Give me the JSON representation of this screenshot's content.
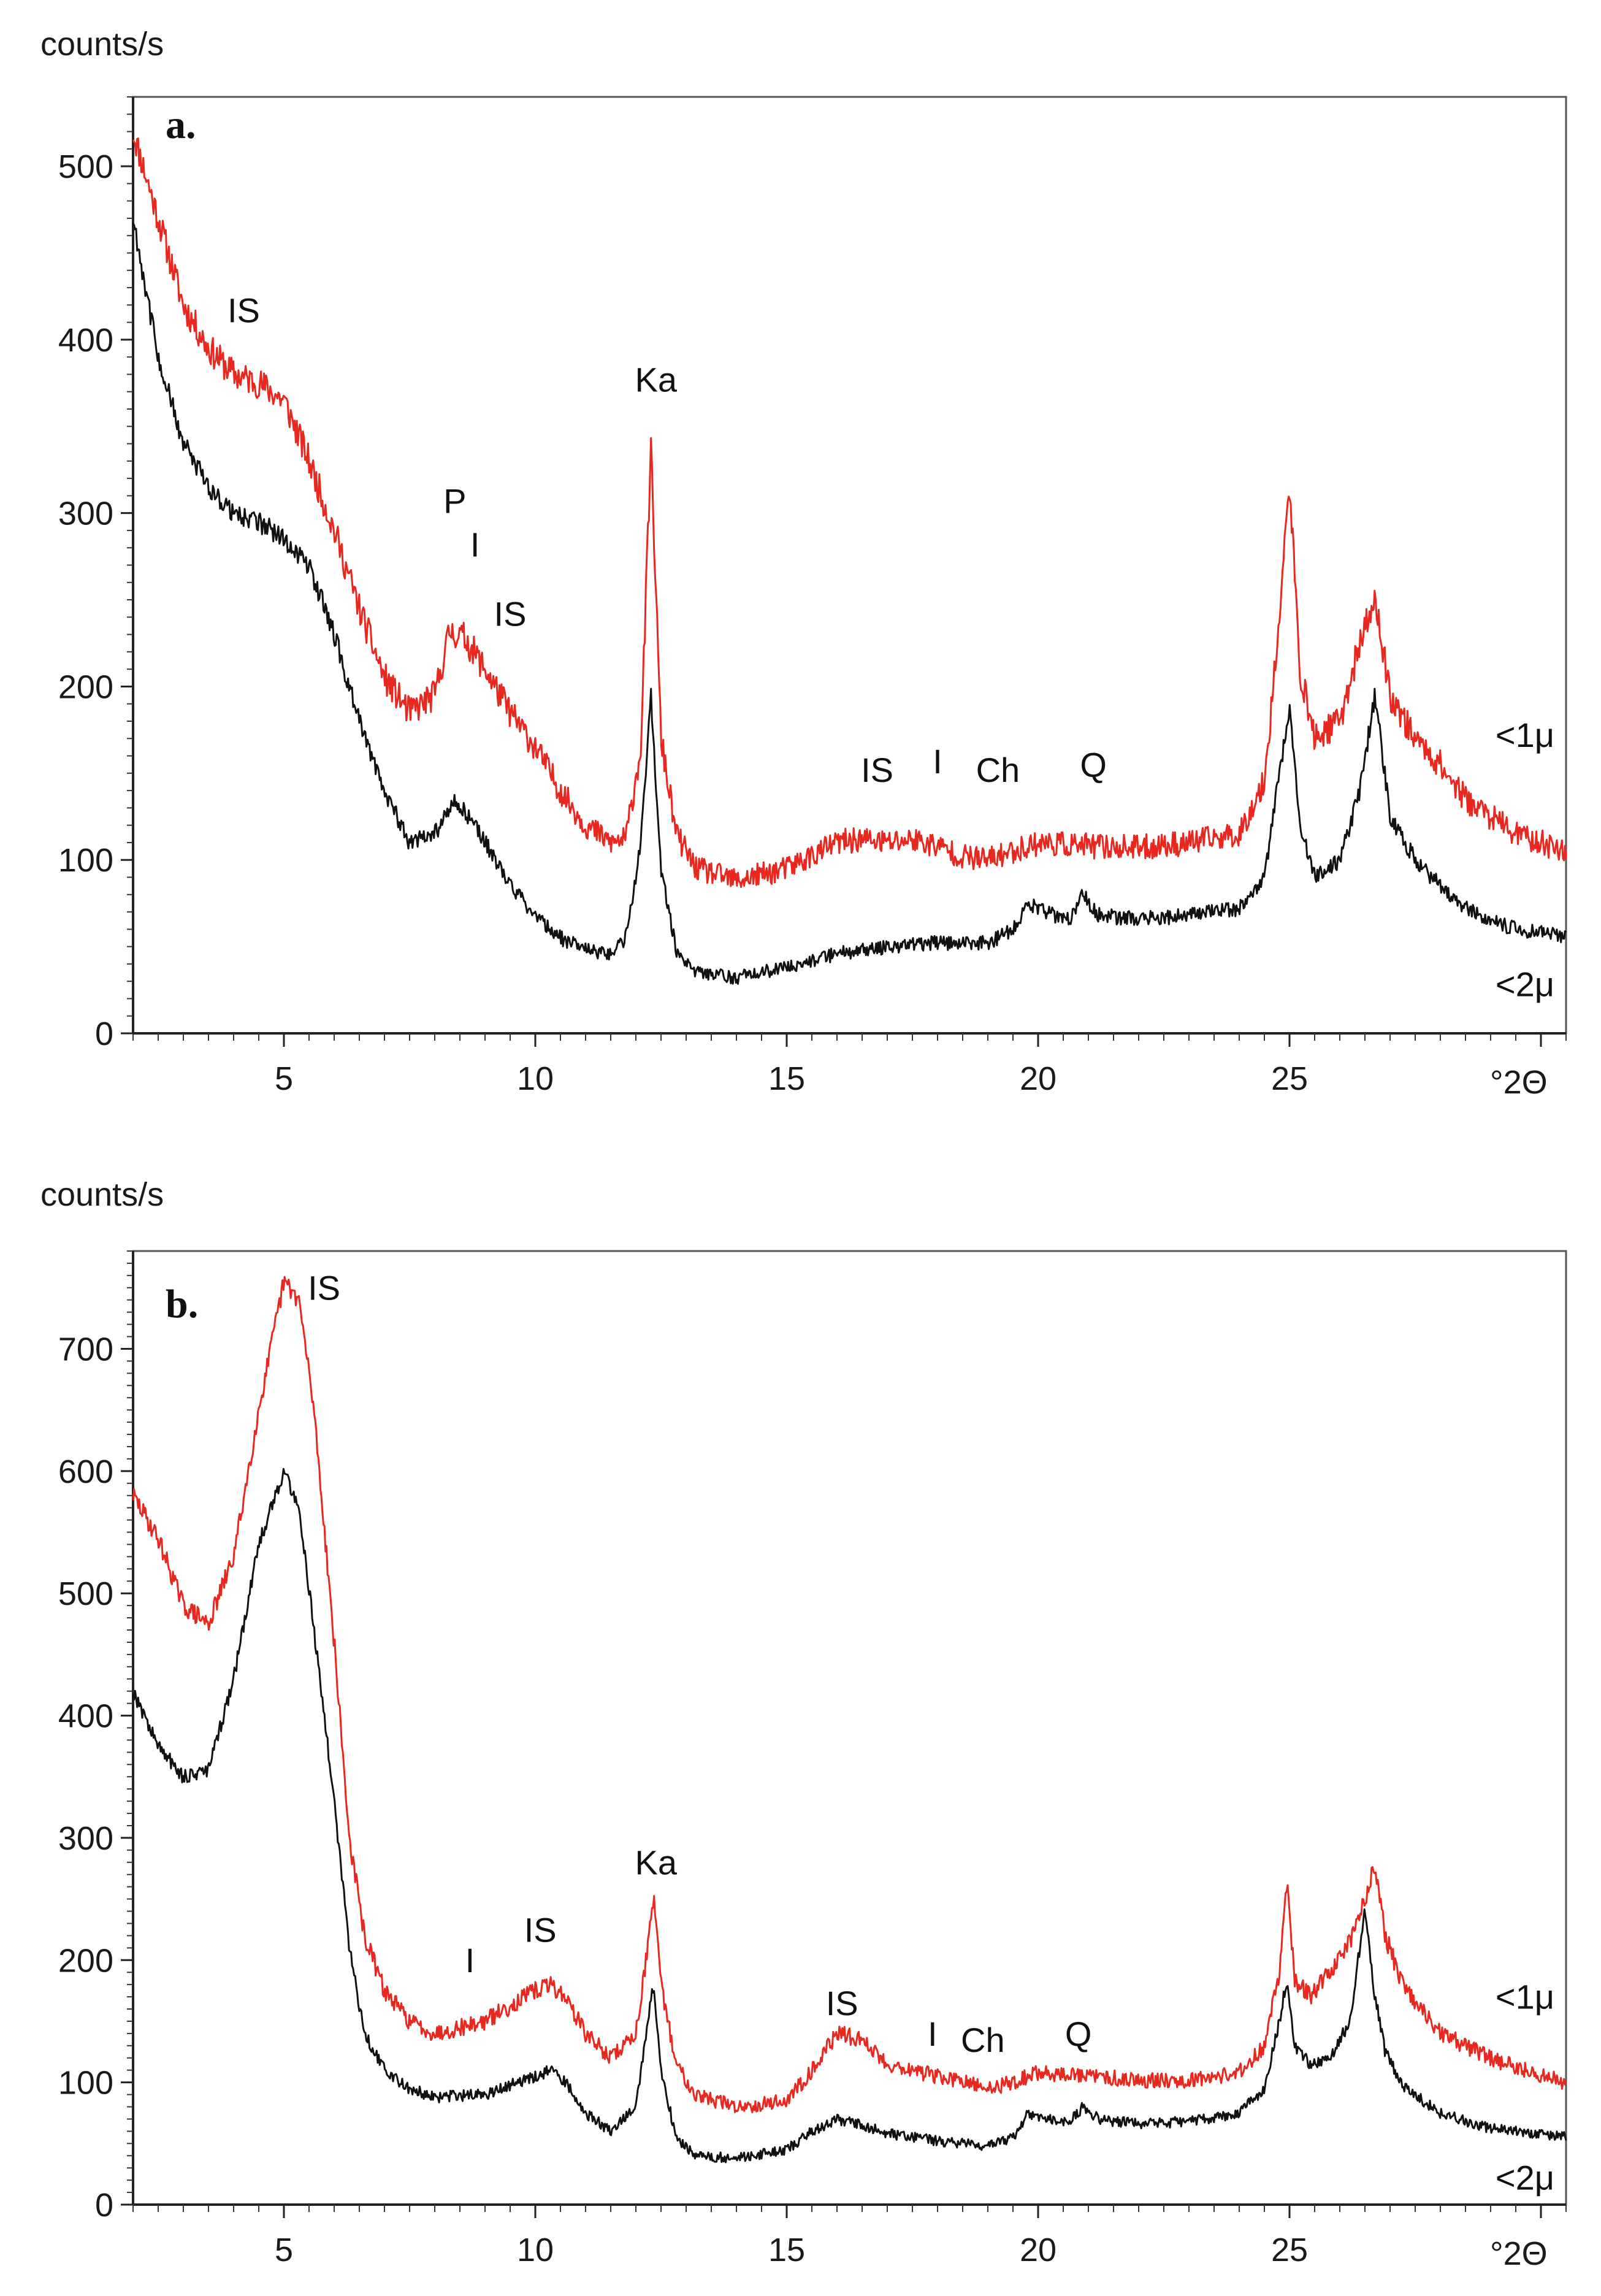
{
  "chart_data": [
    {
      "type": "line",
      "panel_label": "a.",
      "ylabel": "counts/s",
      "xlabel": "°2Θ",
      "xlim": [
        2,
        30.5
      ],
      "ylim": [
        0,
        540
      ],
      "x_ticks": [
        5,
        10,
        15,
        20,
        25
      ],
      "x_tick_labels": [
        "5",
        "10",
        "15",
        "20",
        "25"
      ],
      "y_ticks": [
        0,
        100,
        200,
        300,
        400,
        500
      ],
      "y_tick_labels": [
        "0",
        "100",
        "200",
        "300",
        "400",
        "500"
      ],
      "series": [
        {
          "name": "<1µ",
          "label": "<1μ",
          "color": "#e8281e",
          "x": [
            2,
            2.5,
            3,
            3.5,
            4,
            4.5,
            5,
            5.5,
            6,
            6.5,
            7,
            7.5,
            8,
            8.3,
            8.6,
            9,
            9.5,
            10,
            10.5,
            11,
            11.5,
            11.8,
            12.1,
            12.3,
            12.5,
            12.8,
            13.2,
            14,
            15,
            16,
            16.5,
            17,
            17.5,
            18,
            18.5,
            19,
            19.5,
            20,
            21,
            22,
            23,
            24,
            24.5,
            24.8,
            25,
            25.2,
            25.5,
            26,
            26.4,
            26.7,
            27,
            27.5,
            28,
            28.5,
            29,
            29.5,
            30,
            30.5
          ],
          "y": [
            520,
            470,
            420,
            395,
            380,
            375,
            365,
            330,
            290,
            245,
            205,
            185,
            195,
            232,
            228,
            210,
            185,
            165,
            140,
            120,
            110,
            112,
            165,
            338,
            170,
            115,
            95,
            88,
            95,
            110,
            112,
            110,
            112,
            108,
            102,
            100,
            105,
            110,
            108,
            107,
            110,
            115,
            145,
            240,
            318,
            210,
            170,
            180,
            225,
            250,
            195,
            170,
            155,
            135,
            125,
            115,
            110,
            105
          ],
          "noise": 9
        },
        {
          "name": "<2µ",
          "label": "<2μ",
          "color": "#111111",
          "x": [
            2,
            2.5,
            3,
            3.5,
            4,
            4.5,
            5,
            5.5,
            6,
            6.5,
            7,
            7.5,
            8,
            8.4,
            8.8,
            9.2,
            9.6,
            10,
            10.5,
            11,
            11.5,
            11.8,
            12.1,
            12.3,
            12.5,
            12.8,
            13.2,
            14,
            15,
            16,
            17,
            18,
            19,
            19.5,
            19.8,
            20.2,
            20.6,
            20.9,
            21.2,
            22,
            23,
            24,
            24.5,
            24.8,
            25,
            25.2,
            25.5,
            26,
            26.4,
            26.7,
            27,
            27.5,
            28,
            28.5,
            29,
            29.5,
            30,
            30.5
          ],
          "y": [
            470,
            390,
            340,
            315,
            300,
            295,
            285,
            270,
            230,
            180,
            140,
            110,
            115,
            135,
            120,
            100,
            82,
            68,
            55,
            48,
            45,
            55,
            110,
            195,
            95,
            48,
            35,
            32,
            38,
            46,
            50,
            52,
            52,
            60,
            75,
            70,
            65,
            80,
            68,
            66,
            68,
            72,
            90,
            150,
            190,
            120,
            90,
            100,
            140,
            195,
            125,
            100,
            85,
            72,
            65,
            60,
            58,
            55
          ],
          "noise": 6
        }
      ],
      "annotations": [
        {
          "text": "IS",
          "x": 4.2,
          "y": 410
        },
        {
          "text": "P",
          "x": 8.4,
          "y": 300
        },
        {
          "text": "I",
          "x": 8.8,
          "y": 275
        },
        {
          "text": "IS",
          "x": 9.5,
          "y": 235
        },
        {
          "text": "Ka",
          "x": 12.4,
          "y": 370
        },
        {
          "text": "IS",
          "x": 16.8,
          "y": 145
        },
        {
          "text": "I",
          "x": 18.0,
          "y": 150
        },
        {
          "text": "Ch",
          "x": 19.2,
          "y": 145
        },
        {
          "text": "Q",
          "x": 21.1,
          "y": 148
        }
      ]
    },
    {
      "type": "line",
      "panel_label": "b.",
      "ylabel": "counts/s",
      "xlabel": "°2Θ",
      "xlim": [
        2,
        30.5
      ],
      "ylim": [
        0,
        780
      ],
      "x_ticks": [
        5,
        10,
        15,
        20,
        25
      ],
      "x_tick_labels": [
        "5",
        "10",
        "15",
        "20",
        "25"
      ],
      "y_ticks": [
        0,
        100,
        200,
        300,
        400,
        500,
        600,
        700
      ],
      "y_tick_labels": [
        "0",
        "100",
        "200",
        "300",
        "400",
        "500",
        "600",
        "700"
      ],
      "series": [
        {
          "name": "<1µ",
          "label": "<1μ",
          "color": "#e8281e",
          "x": [
            2,
            2.5,
            3,
            3.5,
            4,
            4.5,
            5,
            5.3,
            5.6,
            6,
            6.3,
            6.6,
            7,
            7.5,
            8,
            9,
            10,
            10.3,
            10.6,
            11,
            11.5,
            12,
            12.2,
            12.35,
            12.5,
            12.8,
            13.2,
            14,
            15,
            15.5,
            16,
            16.5,
            17,
            18,
            19,
            19.5,
            20,
            21,
            22,
            23,
            24,
            24.5,
            24.8,
            24.95,
            25.1,
            25.4,
            25.8,
            26.2,
            26.5,
            26.7,
            26.9,
            27.3,
            28,
            29,
            30,
            30.5
          ],
          "y": [
            580,
            545,
            490,
            475,
            530,
            650,
            755,
            740,
            650,
            460,
            300,
            220,
            175,
            150,
            140,
            150,
            175,
            180,
            170,
            140,
            120,
            140,
            200,
            250,
            180,
            115,
            90,
            80,
            85,
            110,
            140,
            135,
            115,
            105,
            95,
            100,
            108,
            105,
            102,
            102,
            108,
            130,
            190,
            262,
            185,
            170,
            190,
            215,
            250,
            280,
            220,
            175,
            140,
            120,
            105,
            100
          ],
          "noise": 8
        },
        {
          "name": "<2µ",
          "label": "<2μ",
          "color": "#111111",
          "x": [
            2,
            2.5,
            3,
            3.5,
            4,
            4.5,
            5,
            5.3,
            5.6,
            6,
            6.3,
            6.6,
            7,
            7.5,
            8,
            9,
            10,
            10.3,
            10.6,
            11,
            11.5,
            12,
            12.2,
            12.35,
            12.5,
            12.8,
            13.2,
            14,
            15,
            15.5,
            16,
            16.5,
            17,
            18,
            19,
            19.5,
            19.8,
            20.2,
            20.6,
            20.9,
            21.2,
            22,
            23,
            24,
            24.5,
            24.8,
            24.95,
            25.1,
            25.4,
            25.8,
            26.2,
            26.5,
            26.7,
            26.9,
            27.3,
            28,
            29,
            30,
            30.5
          ],
          "y": [
            420,
            375,
            350,
            355,
            430,
            540,
            600,
            570,
            470,
            330,
            210,
            140,
            110,
            95,
            88,
            90,
            105,
            110,
            100,
            75,
            60,
            80,
            140,
            180,
            110,
            55,
            40,
            38,
            45,
            60,
            70,
            65,
            58,
            52,
            48,
            55,
            75,
            70,
            68,
            80,
            70,
            66,
            68,
            75,
            95,
            150,
            185,
            130,
            115,
            120,
            150,
            240,
            170,
            125,
            95,
            75,
            62,
            58,
            55
          ],
          "noise": 6
        }
      ],
      "annotations": [
        {
          "text": "IS",
          "x": 5.8,
          "y": 740
        },
        {
          "text": "I",
          "x": 8.7,
          "y": 190
        },
        {
          "text": "IS",
          "x": 10.1,
          "y": 215
        },
        {
          "text": "Ka",
          "x": 12.4,
          "y": 270
        },
        {
          "text": "IS",
          "x": 16.1,
          "y": 155
        },
        {
          "text": "I",
          "x": 17.9,
          "y": 130
        },
        {
          "text": "Ch",
          "x": 18.9,
          "y": 125
        },
        {
          "text": "Q",
          "x": 20.8,
          "y": 130
        }
      ]
    }
  ]
}
